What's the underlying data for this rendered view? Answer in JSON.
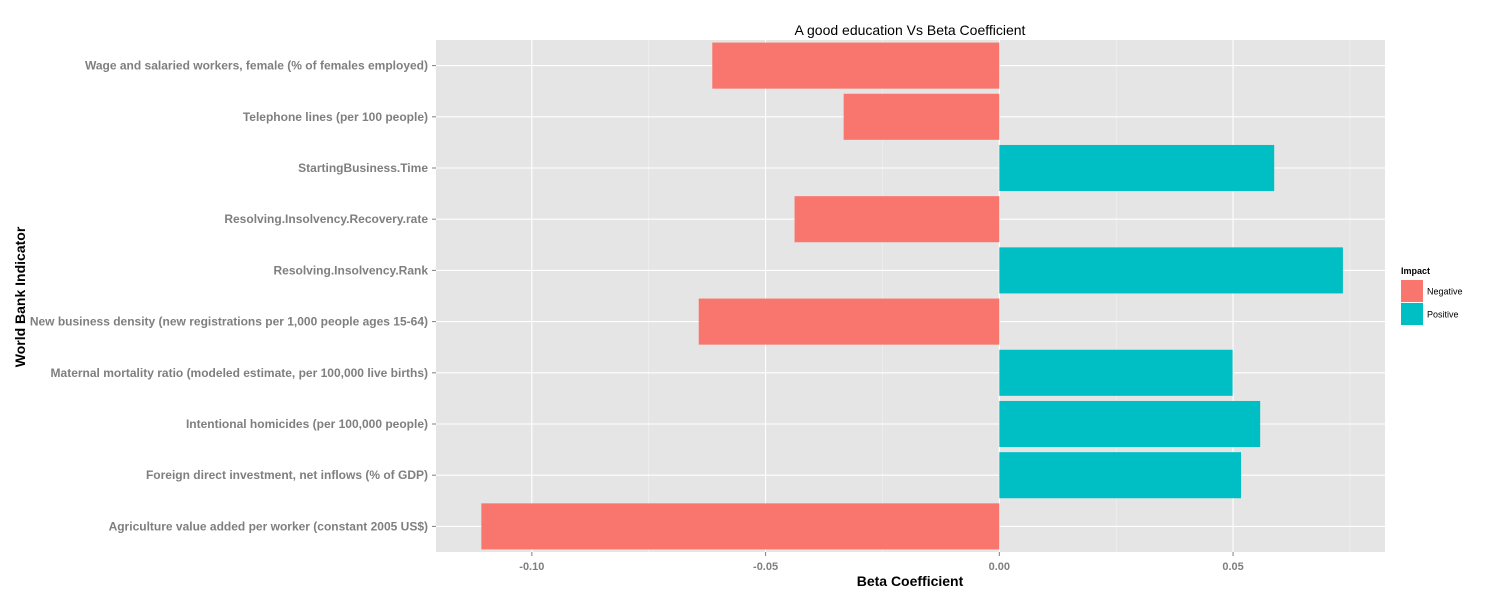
{
  "chart_data": {
    "type": "bar",
    "orientation": "horizontal",
    "title": "A good education Vs Beta Coefficient",
    "xlabel": "Beta Coefficient",
    "ylabel": "World Bank Indicator",
    "xlim": [
      -0.1205,
      0.0825
    ],
    "x_ticks": [
      -0.1,
      -0.05,
      0.0,
      0.05
    ],
    "x_tick_labels": [
      "-0.10",
      "-0.05",
      "0.00",
      "0.05"
    ],
    "grid": true,
    "legend": {
      "title": "Impact",
      "position": "right",
      "entries": [
        {
          "label": "Negative",
          "color": "#F8766D"
        },
        {
          "label": "Positive",
          "color": "#00BFC4"
        }
      ]
    },
    "categories": [
      "Wage and salaried workers, female (% of females employed)",
      "Telephone lines (per 100 people)",
      "StartingBusiness.Time",
      "Resolving.Insolvency.Recovery.rate",
      "Resolving.Insolvency.Rank",
      "New business density (new registrations per 1,000 people ages 15-64)",
      "Maternal mortality ratio (modeled estimate, per 100,000 live births)",
      "Intentional homicides (per 100,000 people)",
      "Foreign direct investment, net inflows (% of GDP)",
      "Agriculture value added per worker (constant 2005 US$)"
    ],
    "values": [
      -0.0614,
      -0.0333,
      0.0588,
      -0.0438,
      0.0735,
      -0.0643,
      0.0499,
      0.0558,
      0.0517,
      -0.1108
    ],
    "impact": [
      "Negative",
      "Negative",
      "Positive",
      "Negative",
      "Positive",
      "Negative",
      "Positive",
      "Positive",
      "Positive",
      "Negative"
    ]
  },
  "colors": {
    "panel_background": "#E5E5E5",
    "gridline": "#FFFFFF",
    "negative": "#F8766D",
    "positive": "#00BFC4"
  }
}
